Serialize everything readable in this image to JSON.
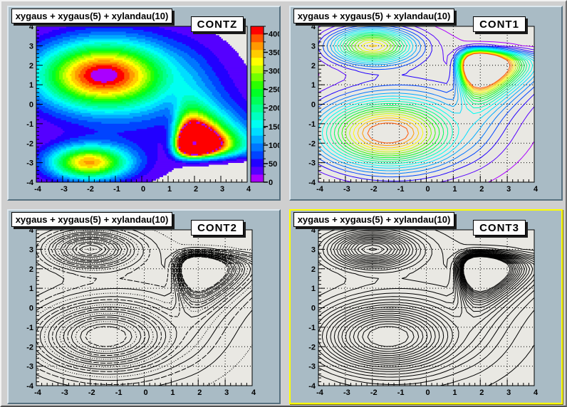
{
  "canvas": {
    "background_color": "#cfcfcf",
    "pad_color": "#a9bbc5",
    "frame_fill_color": "#e9e8e3",
    "selected_pad_highlight_color": "#ffff00",
    "selected_pad": "CONT3"
  },
  "pads": [
    {
      "title": "xygaus + xygaus(5) + xylandau(10)",
      "label": "CONTZ",
      "draw_option": "CONTZ",
      "style": "filled",
      "grid": false,
      "show_palette": true,
      "selected": false
    },
    {
      "title": "xygaus + xygaus(5) + xylandau(10)",
      "label": "CONT1",
      "draw_option": "CONT1",
      "style": "colored-lines",
      "grid": true,
      "show_palette": false,
      "selected": false
    },
    {
      "title": "xygaus + xygaus(5) + xylandau(10)",
      "label": "CONT2",
      "draw_option": "CONT2",
      "style": "styled-lines",
      "grid": true,
      "show_palette": false,
      "selected": false
    },
    {
      "title": "xygaus + xygaus(5) + xylandau(10)",
      "label": "CONT3",
      "draw_option": "CONT3",
      "style": "solid-lines",
      "grid": true,
      "show_palette": false,
      "selected": true
    }
  ],
  "chart_data": {
    "type": "contour",
    "title": "xygaus + xygaus(5) + xylandau(10)",
    "x_range": [
      -4,
      4
    ],
    "y_range": [
      -4,
      4
    ],
    "x_ticks": [
      -4,
      -3,
      -2,
      -1,
      0,
      1,
      2,
      3,
      4
    ],
    "y_ticks": [
      -4,
      -3,
      -2,
      -1,
      0,
      1,
      2,
      3,
      4
    ],
    "minor_tick_step": 0.2,
    "z_min": 0,
    "z_max": 420,
    "n_levels": 20,
    "palette_ticks": [
      0,
      50,
      100,
      150,
      200,
      250,
      300,
      350,
      400
    ],
    "palette_colors": [
      "#aa00ff",
      "#5500ff",
      "#2200ff",
      "#0044ff",
      "#0077ff",
      "#00aaff",
      "#00ddff",
      "#00fff2",
      "#00ffc0",
      "#00ff8c",
      "#00ff59",
      "#00ff26",
      "#2bff00",
      "#73ff00",
      "#bfff00",
      "#ffff00",
      "#ffcc00",
      "#ff9900",
      "#ff5500",
      "#ff0000"
    ],
    "peaks": [
      {
        "type": "gaussian",
        "amplitude": 390,
        "x": -1.5,
        "y": 1.5,
        "sigma_x": 1.7,
        "sigma_y": 1.15
      },
      {
        "type": "gaussian",
        "amplitude": 345,
        "x": -2.0,
        "y": -3.0,
        "sigma_x": 1.05,
        "sigma_y": 0.6
      },
      {
        "type": "landau",
        "amplitude": 820,
        "x": 2.0,
        "y": -2.0,
        "sigma_x": 0.45,
        "sigma_y": 0.45
      },
      {
        "type": "gaussian",
        "amplitude": 60,
        "x": 0.0,
        "y": 0.5,
        "sigma_x": 2.6,
        "sigma_y": 2.6
      }
    ]
  }
}
